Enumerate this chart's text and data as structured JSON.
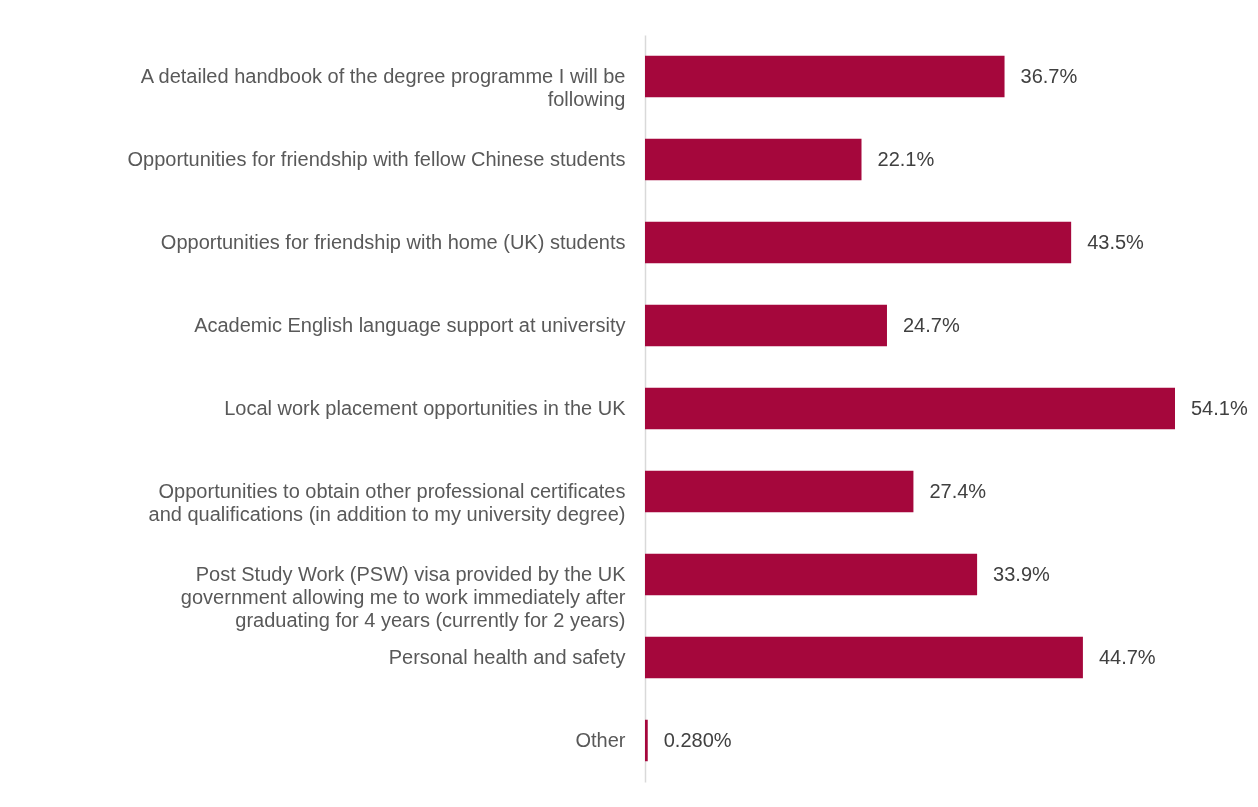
{
  "chart_data": {
    "type": "bar",
    "orientation": "horizontal",
    "categories": [
      "A detailed handbook of the degree programme I will be following",
      "Opportunities for friendship with fellow Chinese students",
      "Opportunities for friendship with home (UK) students",
      "Academic English language support at university",
      "Local work placement opportunities in the UK",
      "Opportunities to obtain other professional certificates and qualifications (in addition to my university degree)",
      "Post Study Work (PSW) visa provided by the UK government allowing me to work immediately after graduating for 4 years (currently for 2 years)",
      "Personal health and safety",
      "Other"
    ],
    "values": [
      36.7,
      22.1,
      43.5,
      24.7,
      54.1,
      27.4,
      33.9,
      44.7,
      0.28
    ],
    "value_labels": [
      "36.7%",
      "22.1%",
      "43.5%",
      "24.7%",
      "54.1%",
      "27.4%",
      "33.9%",
      "44.7%",
      "0.280%"
    ],
    "color": "#a5073c"
  }
}
